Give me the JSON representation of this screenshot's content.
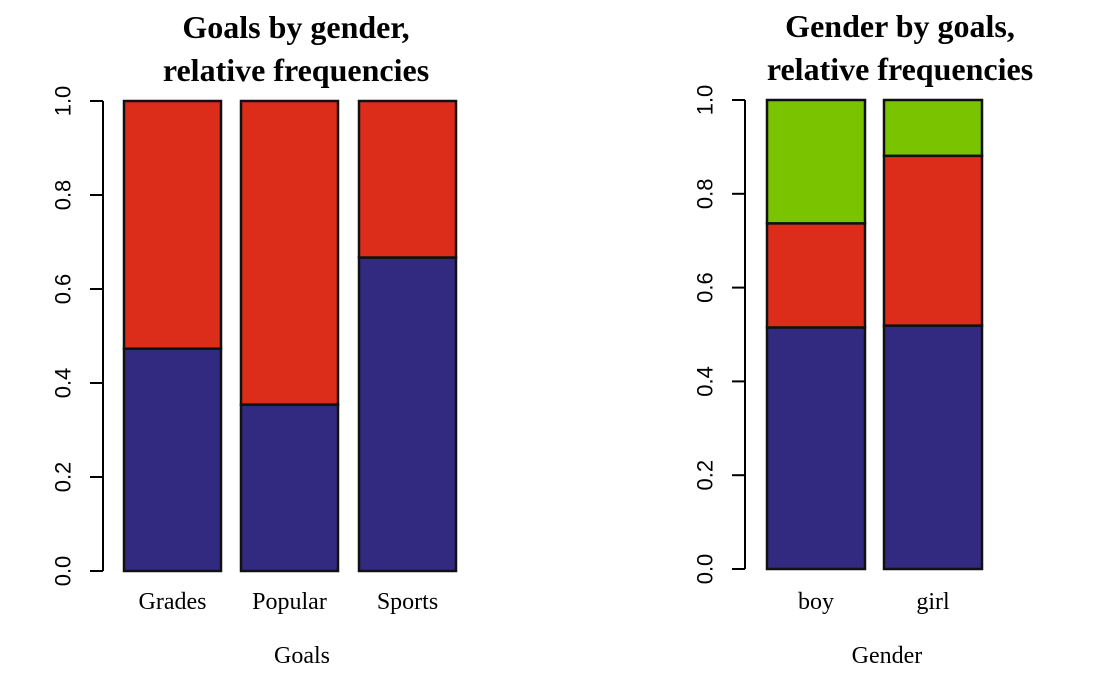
{
  "chart_data": [
    {
      "type": "bar",
      "stacked": true,
      "title": [
        "Goals by gender,",
        "relative frequencies"
      ],
      "xlabel": "Goals",
      "ylabel": "",
      "ylim": [
        0,
        1
      ],
      "yticks": [
        "0.0",
        "0.2",
        "0.4",
        "0.6",
        "0.8",
        "1.0"
      ],
      "categories": [
        "Grades",
        "Popular",
        "Sports"
      ],
      "series": [
        {
          "color": "#322a80",
          "values": [
            0.473,
            0.354,
            0.667
          ]
        },
        {
          "color": "#dc2d1a",
          "values": [
            0.527,
            0.646,
            0.333
          ]
        }
      ],
      "grid": false,
      "legend": "none"
    },
    {
      "type": "bar",
      "stacked": true,
      "title": [
        "Gender by goals,",
        "relative frequencies"
      ],
      "xlabel": "Gender",
      "ylabel": "",
      "ylim": [
        0,
        1
      ],
      "yticks": [
        "0.0",
        "0.2",
        "0.4",
        "0.6",
        "0.8",
        "1.0"
      ],
      "categories": [
        "boy",
        "girl"
      ],
      "series": [
        {
          "color": "#322a80",
          "values": [
            0.515,
            0.519
          ]
        },
        {
          "color": "#dc2d1a",
          "values": [
            0.222,
            0.362
          ]
        },
        {
          "color": "#79c300",
          "values": [
            0.263,
            0.119
          ]
        }
      ],
      "grid": false,
      "legend": "none"
    }
  ]
}
